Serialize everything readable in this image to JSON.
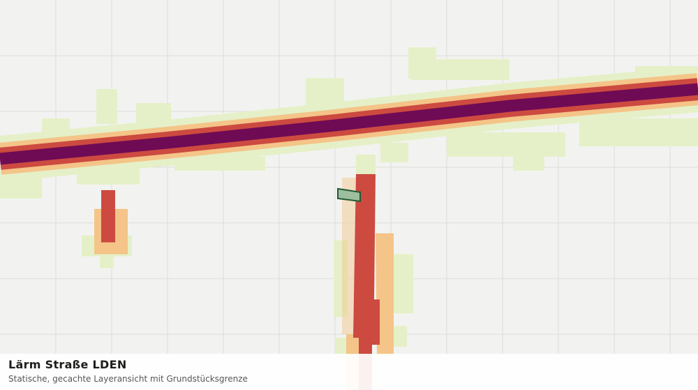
{
  "layer": {
    "title": "Lärm Straße LDEN",
    "subtitle": "Statische, gecachte Layeransicht mit Grundstücksgrenze"
  }
}
